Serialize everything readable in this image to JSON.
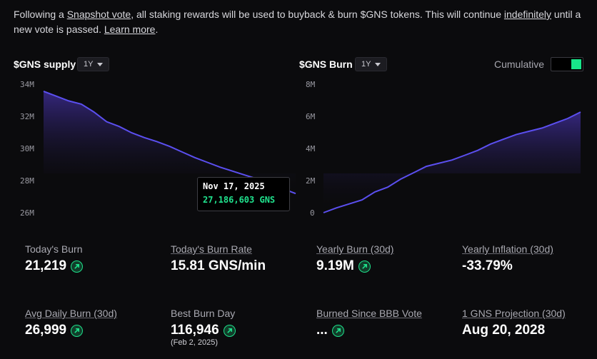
{
  "notice": {
    "p1": "Following a ",
    "link1": "Snapshot vote",
    "p2": ", all staking rewards will be used to buyback & burn $GNS tokens. This will continue ",
    "link2": "indefinitely",
    "p3": " until a new vote is passed. ",
    "link3": "Learn more",
    "p4": "."
  },
  "supply_panel": {
    "title": "$GNS supply",
    "range": "1Y",
    "y_ticks": [
      "34M",
      "32M",
      "30M",
      "28M",
      "26M"
    ],
    "tooltip": {
      "date": "Nov 17, 2025",
      "value": "27,186,603 GNS"
    }
  },
  "burn_panel": {
    "title": "$GNS Burn",
    "range": "1Y",
    "cumulative_label": "Cumulative",
    "cumulative_on": true,
    "y_ticks": [
      "8M",
      "6M",
      "4M",
      "2M",
      "0"
    ]
  },
  "stats": {
    "today_burn": {
      "label": "Today's Burn",
      "value": "21,219"
    },
    "today_rate": {
      "label": "Today's Burn Rate",
      "value": "15.81 GNS/min"
    },
    "yearly_burn": {
      "label": "Yearly Burn (30d)",
      "value": "9.19M"
    },
    "yearly_inflation": {
      "label": "Yearly Inflation (30d)",
      "value": "-33.79%"
    },
    "avg_daily": {
      "label": "Avg Daily Burn (30d)",
      "value": "26,999"
    },
    "best_day": {
      "label": "Best Burn Day",
      "value": "116,946",
      "sub": "(Feb 2, 2025)"
    },
    "since_bbb": {
      "label": "Burned Since BBB Vote",
      "value": "..."
    },
    "projection": {
      "label": "1 GNS Projection (30d)",
      "value": "Aug 20, 2028"
    }
  },
  "colors": {
    "line": "#5b4ff0",
    "accent_green": "#1ee08a",
    "area_top": "#3a2a8a"
  },
  "chart_data": [
    {
      "type": "area",
      "title": "$GNS supply",
      "y_unit": "M",
      "ylim": [
        26,
        34
      ],
      "x": [
        0,
        0.05,
        0.1,
        0.15,
        0.2,
        0.25,
        0.3,
        0.35,
        0.4,
        0.45,
        0.5,
        0.55,
        0.6,
        0.65,
        0.7,
        0.75,
        0.8,
        0.85,
        0.9,
        0.95,
        1.0
      ],
      "values": [
        33.6,
        33.3,
        33.0,
        32.8,
        32.3,
        31.7,
        31.4,
        31.0,
        30.7,
        30.45,
        30.15,
        29.8,
        29.45,
        29.15,
        28.85,
        28.6,
        28.35,
        28.1,
        27.85,
        27.5,
        27.2
      ]
    },
    {
      "type": "area",
      "title": "$GNS Burn",
      "y_unit": "M",
      "ylim": [
        0,
        8
      ],
      "x": [
        0,
        0.05,
        0.1,
        0.15,
        0.2,
        0.25,
        0.3,
        0.35,
        0.4,
        0.45,
        0.5,
        0.55,
        0.6,
        0.65,
        0.7,
        0.75,
        0.8,
        0.85,
        0.9,
        0.95,
        1.0
      ],
      "values": [
        0.0,
        0.3,
        0.55,
        0.8,
        1.3,
        1.6,
        2.1,
        2.5,
        2.9,
        3.1,
        3.3,
        3.6,
        3.9,
        4.3,
        4.6,
        4.9,
        5.1,
        5.3,
        5.6,
        5.9,
        6.3
      ]
    }
  ]
}
